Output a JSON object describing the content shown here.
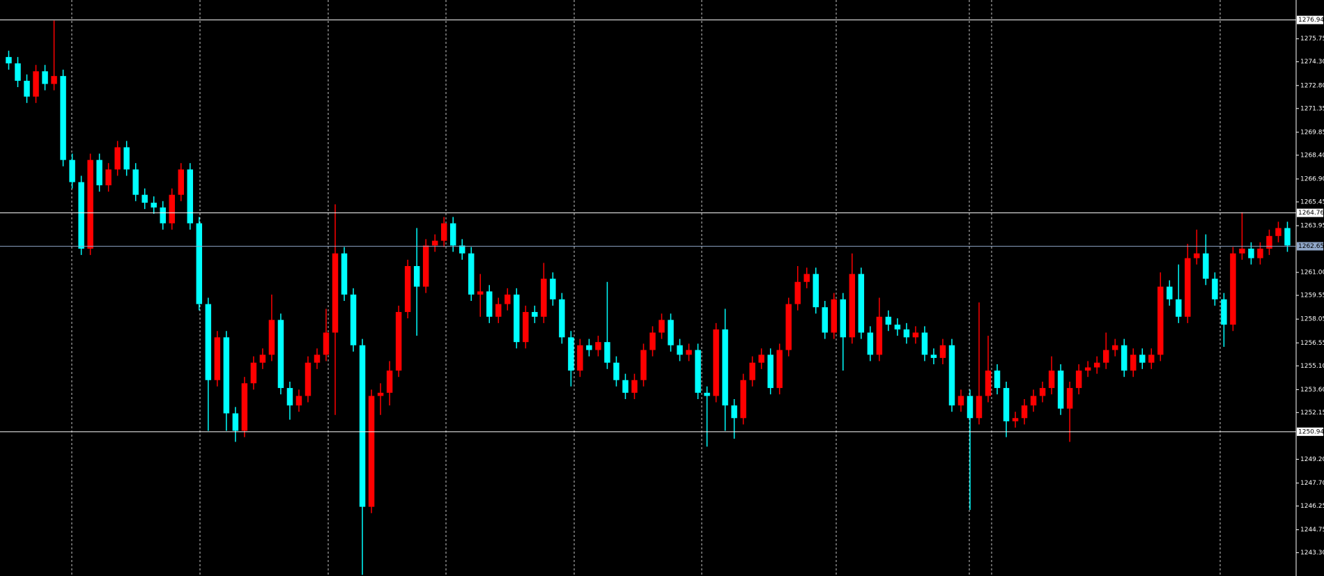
{
  "chart_data": {
    "type": "candlestick",
    "open": [
      1274.6,
      1274.2,
      1273.1,
      1272.1,
      1273.7,
      1272.9,
      1273.4,
      1268.1,
      1266.7,
      1262.5,
      1268.1,
      1266.5,
      1267.5,
      1268.9,
      1267.5,
      1265.9,
      1265.4,
      1265.1,
      1264.1,
      1265.9,
      1267.5,
      1264.1,
      1259.0,
      1254.2,
      1256.9,
      1252.1,
      1251.0,
      1254.0,
      1255.3,
      1255.8,
      1258.0,
      1253.7,
      1252.6,
      1253.2,
      1255.3,
      1255.8,
      1257.2,
      1262.2,
      1259.6,
      1256.4,
      1246.2,
      1253.2,
      1253.4,
      1254.8,
      1258.5,
      1261.4,
      1260.1,
      1262.7,
      1263.0,
      1264.1,
      1262.7,
      1262.2,
      1259.6,
      1259.8,
      1258.2,
      1259.0,
      1259.6,
      1256.6,
      1258.5,
      1258.2,
      1260.6,
      1259.3,
      1256.9,
      1254.8,
      1256.4,
      1256.1,
      1256.6,
      1255.3,
      1254.2,
      1253.4,
      1254.2,
      1256.1,
      1257.2,
      1258.0,
      1256.4,
      1255.8,
      1256.1,
      1253.4,
      1253.2,
      1257.4,
      1252.6,
      1251.8,
      1254.2,
      1255.3,
      1255.8,
      1253.7,
      1256.1,
      1259.0,
      1260.4,
      1260.9,
      1258.8,
      1257.2,
      1259.3,
      1256.9,
      1260.9,
      1257.2,
      1255.8,
      1258.2,
      1257.7,
      1257.4,
      1256.9,
      1257.2,
      1255.8,
      1255.6,
      1256.4,
      1252.6,
      1253.2,
      1251.8,
      1253.2,
      1254.8,
      1253.7,
      1251.6,
      1251.8,
      1252.6,
      1253.2,
      1253.7,
      1254.8,
      1252.4,
      1253.7,
      1254.8,
      1255.0,
      1255.3,
      1256.1,
      1256.4,
      1254.8,
      1255.8,
      1255.3,
      1255.8,
      1260.1,
      1259.3,
      1258.2,
      1261.9,
      1262.2,
      1260.6,
      1259.3,
      1257.7,
      1262.2,
      1262.5,
      1261.9,
      1262.5,
      1263.3,
      1263.8
    ],
    "high": [
      1275.0,
      1274.6,
      1273.5,
      1274.1,
      1274.1,
      1276.9,
      1273.8,
      1268.5,
      1267.1,
      1268.5,
      1268.5,
      1267.9,
      1269.3,
      1269.3,
      1267.9,
      1266.3,
      1265.8,
      1265.5,
      1266.3,
      1267.9,
      1267.9,
      1264.5,
      1259.4,
      1257.3,
      1257.3,
      1252.5,
      1254.4,
      1255.7,
      1256.2,
      1259.6,
      1258.4,
      1254.1,
      1253.6,
      1255.7,
      1256.2,
      1258.7,
      1265.3,
      1262.6,
      1260.0,
      1256.8,
      1253.6,
      1254.0,
      1255.4,
      1258.9,
      1261.8,
      1263.8,
      1263.1,
      1263.4,
      1264.5,
      1264.5,
      1263.1,
      1262.6,
      1260.9,
      1260.2,
      1259.4,
      1260.0,
      1260.0,
      1258.9,
      1258.9,
      1261.6,
      1261.0,
      1259.7,
      1257.3,
      1256.8,
      1256.8,
      1257.0,
      1260.4,
      1255.7,
      1254.6,
      1254.6,
      1256.5,
      1257.6,
      1258.4,
      1258.4,
      1256.8,
      1256.5,
      1256.5,
      1253.8,
      1257.8,
      1258.7,
      1253.0,
      1254.6,
      1255.7,
      1256.2,
      1256.2,
      1256.5,
      1259.4,
      1261.4,
      1261.3,
      1261.3,
      1259.2,
      1259.7,
      1259.7,
      1262.2,
      1261.3,
      1257.6,
      1259.4,
      1258.6,
      1258.1,
      1257.8,
      1257.6,
      1257.6,
      1256.2,
      1256.8,
      1256.8,
      1253.6,
      1253.6,
      1259.1,
      1257.0,
      1255.2,
      1254.1,
      1252.2,
      1253.0,
      1253.6,
      1254.1,
      1255.7,
      1255.2,
      1254.1,
      1255.2,
      1255.4,
      1255.7,
      1257.2,
      1256.8,
      1256.8,
      1256.2,
      1256.2,
      1256.2,
      1261.0,
      1260.5,
      1261.5,
      1262.8,
      1263.7,
      1263.4,
      1261.0,
      1259.7,
      1262.6,
      1264.8,
      1262.9,
      1262.9,
      1263.7,
      1264.2,
      1264.2
    ],
    "low": [
      1273.8,
      1272.7,
      1271.7,
      1271.7,
      1272.5,
      1272.5,
      1267.7,
      1266.3,
      1262.1,
      1262.1,
      1266.1,
      1266.1,
      1267.1,
      1267.1,
      1265.5,
      1265.0,
      1264.7,
      1263.7,
      1263.7,
      1265.5,
      1263.7,
      1258.6,
      1251.0,
      1253.8,
      1251.0,
      1250.3,
      1250.6,
      1253.6,
      1254.9,
      1255.4,
      1253.3,
      1251.7,
      1252.2,
      1252.8,
      1254.9,
      1255.4,
      1252.0,
      1259.2,
      1256.0,
      1241.9,
      1245.8,
      1252.0,
      1252.6,
      1254.4,
      1258.1,
      1257.0,
      1259.7,
      1262.3,
      1262.6,
      1262.3,
      1261.8,
      1259.2,
      1258.2,
      1257.8,
      1257.8,
      1258.6,
      1256.2,
      1256.2,
      1257.8,
      1257.8,
      1258.9,
      1256.5,
      1253.8,
      1254.4,
      1255.7,
      1255.7,
      1254.9,
      1253.8,
      1253.0,
      1253.0,
      1253.8,
      1255.7,
      1256.8,
      1256.0,
      1255.4,
      1255.4,
      1253.0,
      1250.0,
      1252.8,
      1251.0,
      1250.5,
      1251.4,
      1253.8,
      1254.9,
      1253.3,
      1253.3,
      1255.7,
      1258.6,
      1260.0,
      1258.4,
      1256.8,
      1256.8,
      1254.8,
      1256.5,
      1256.8,
      1255.4,
      1255.4,
      1257.3,
      1257.0,
      1256.5,
      1256.5,
      1255.4,
      1255.2,
      1255.2,
      1252.2,
      1252.2,
      1246.0,
      1251.4,
      1252.8,
      1253.3,
      1250.6,
      1251.2,
      1251.4,
      1252.2,
      1252.8,
      1253.3,
      1252.0,
      1250.3,
      1253.3,
      1254.4,
      1254.6,
      1254.9,
      1255.7,
      1254.4,
      1254.4,
      1254.9,
      1254.9,
      1255.4,
      1258.9,
      1257.8,
      1257.8,
      1261.5,
      1260.2,
      1258.9,
      1256.3,
      1257.3,
      1261.8,
      1261.5,
      1261.5,
      1262.1,
      1262.9,
      1262.3
    ],
    "close": [
      1274.2,
      1273.1,
      1272.1,
      1273.7,
      1272.9,
      1273.4,
      1268.1,
      1266.7,
      1262.5,
      1268.1,
      1266.5,
      1267.5,
      1268.9,
      1267.5,
      1265.9,
      1265.4,
      1265.1,
      1264.1,
      1265.9,
      1267.5,
      1264.1,
      1259.0,
      1254.2,
      1256.9,
      1252.1,
      1251.0,
      1254.0,
      1255.3,
      1255.8,
      1258.0,
      1253.7,
      1252.6,
      1253.2,
      1255.3,
      1255.8,
      1257.2,
      1262.2,
      1259.6,
      1256.4,
      1246.2,
      1253.2,
      1253.4,
      1254.8,
      1258.5,
      1261.4,
      1260.1,
      1262.7,
      1263.0,
      1264.1,
      1262.7,
      1262.2,
      1259.6,
      1259.8,
      1258.2,
      1259.0,
      1259.6,
      1256.6,
      1258.5,
      1258.2,
      1260.6,
      1259.3,
      1256.9,
      1254.8,
      1256.4,
      1256.1,
      1256.6,
      1255.3,
      1254.2,
      1253.4,
      1254.2,
      1256.1,
      1257.2,
      1258.0,
      1256.4,
      1255.8,
      1256.1,
      1253.4,
      1253.2,
      1257.4,
      1252.6,
      1251.8,
      1254.2,
      1255.3,
      1255.8,
      1253.7,
      1256.1,
      1259.0,
      1260.4,
      1260.9,
      1258.8,
      1257.2,
      1259.3,
      1256.9,
      1260.9,
      1257.2,
      1255.8,
      1258.2,
      1257.7,
      1257.4,
      1256.9,
      1257.2,
      1255.8,
      1255.6,
      1256.4,
      1252.6,
      1253.2,
      1251.8,
      1253.2,
      1254.8,
      1253.7,
      1251.6,
      1251.8,
      1252.6,
      1253.2,
      1253.7,
      1254.8,
      1252.4,
      1253.7,
      1254.8,
      1255.0,
      1255.3,
      1256.1,
      1256.4,
      1254.8,
      1255.8,
      1255.3,
      1255.8,
      1260.1,
      1259.3,
      1258.2,
      1261.9,
      1262.2,
      1260.6,
      1259.3,
      1257.7,
      1262.2,
      1262.5,
      1261.9,
      1262.5,
      1263.3,
      1263.8,
      1262.7
    ],
    "up_color": "#ff0000",
    "down_color": "#00ffff",
    "ylim": [
      1241.83,
      1278.2
    ],
    "yticks": [
      1275.75,
      {
        "value": 1274.3,
        "label": "1274.30"
      },
      {
        "value": 1272.8,
        "label": "1272.80"
      },
      1271.35,
      1269.85,
      {
        "value": 1268.4,
        "label": "1268.40"
      },
      {
        "value": 1266.9,
        "label": "1266.90"
      },
      1265.45,
      1263.95,
      {
        "value": 1261,
        "label": "1261.00"
      },
      1259.55,
      1258.05,
      1256.55,
      {
        "value": 1255.1,
        "label": "1255.10"
      },
      {
        "value": 1253.6,
        "label": "1253.60"
      },
      1252.15,
      {
        "value": 1249.2,
        "label": "1249.20"
      },
      {
        "value": 1247.7,
        "label": "1247.70"
      },
      1246.25,
      1244.75,
      {
        "value": 1243.3,
        "label": "1243.30"
      }
    ],
    "hlines": [
      1276.94,
      1264.76,
      1262.65,
      1250.94
    ],
    "hline_colors": [
      "#ffffff",
      "#ffffff",
      "#8fa6c8",
      "#ffffff"
    ]
  }
}
